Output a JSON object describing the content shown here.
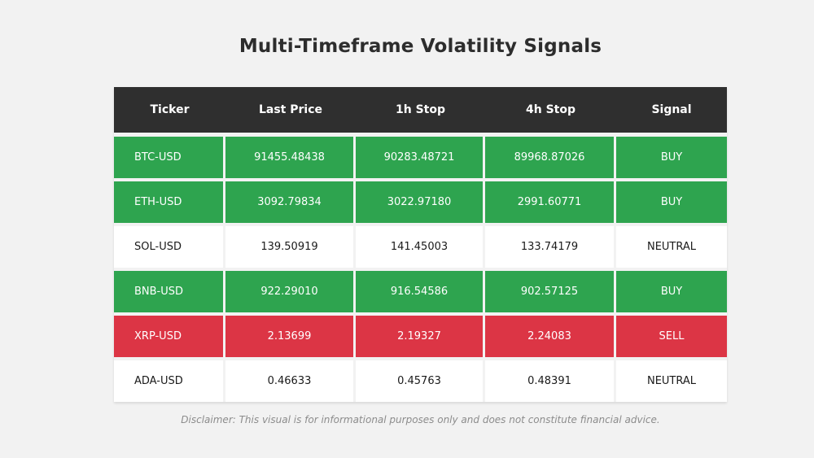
{
  "chart_data": {
    "type": "table",
    "title": "Multi-Timeframe Volatility Signals",
    "columns": [
      "Ticker",
      "Last Price",
      "1h Stop",
      "4h Stop",
      "Signal"
    ],
    "rows": [
      {
        "ticker": "BTC-USD",
        "last_price": "91455.48438",
        "stop_1h": "90283.48721",
        "stop_4h": "89968.87026",
        "signal": "BUY"
      },
      {
        "ticker": "ETH-USD",
        "last_price": "3092.79834",
        "stop_1h": "3022.97180",
        "stop_4h": "2991.60771",
        "signal": "BUY"
      },
      {
        "ticker": "SOL-USD",
        "last_price": "139.50919",
        "stop_1h": "141.45003",
        "stop_4h": "133.74179",
        "signal": "NEUTRAL"
      },
      {
        "ticker": "BNB-USD",
        "last_price": "922.29010",
        "stop_1h": "916.54586",
        "stop_4h": "902.57125",
        "signal": "BUY"
      },
      {
        "ticker": "XRP-USD",
        "last_price": "2.13699",
        "stop_1h": "2.19327",
        "stop_4h": "2.24083",
        "signal": "SELL"
      },
      {
        "ticker": "ADA-USD",
        "last_price": "0.46633",
        "stop_1h": "0.45763",
        "stop_4h": "0.48391",
        "signal": "NEUTRAL"
      }
    ],
    "legend_position": "none",
    "grid": false
  },
  "disclaimer": "Disclaimer: This visual is for informational purposes only and does not constitute financial advice.",
  "colors": {
    "page_bg": "#F2F2F2",
    "header_bg": "#2F2F2F",
    "buy_bg": "#2EA44F",
    "sell_bg": "#DC3545",
    "neutral_bg": "#FFFFFF"
  }
}
